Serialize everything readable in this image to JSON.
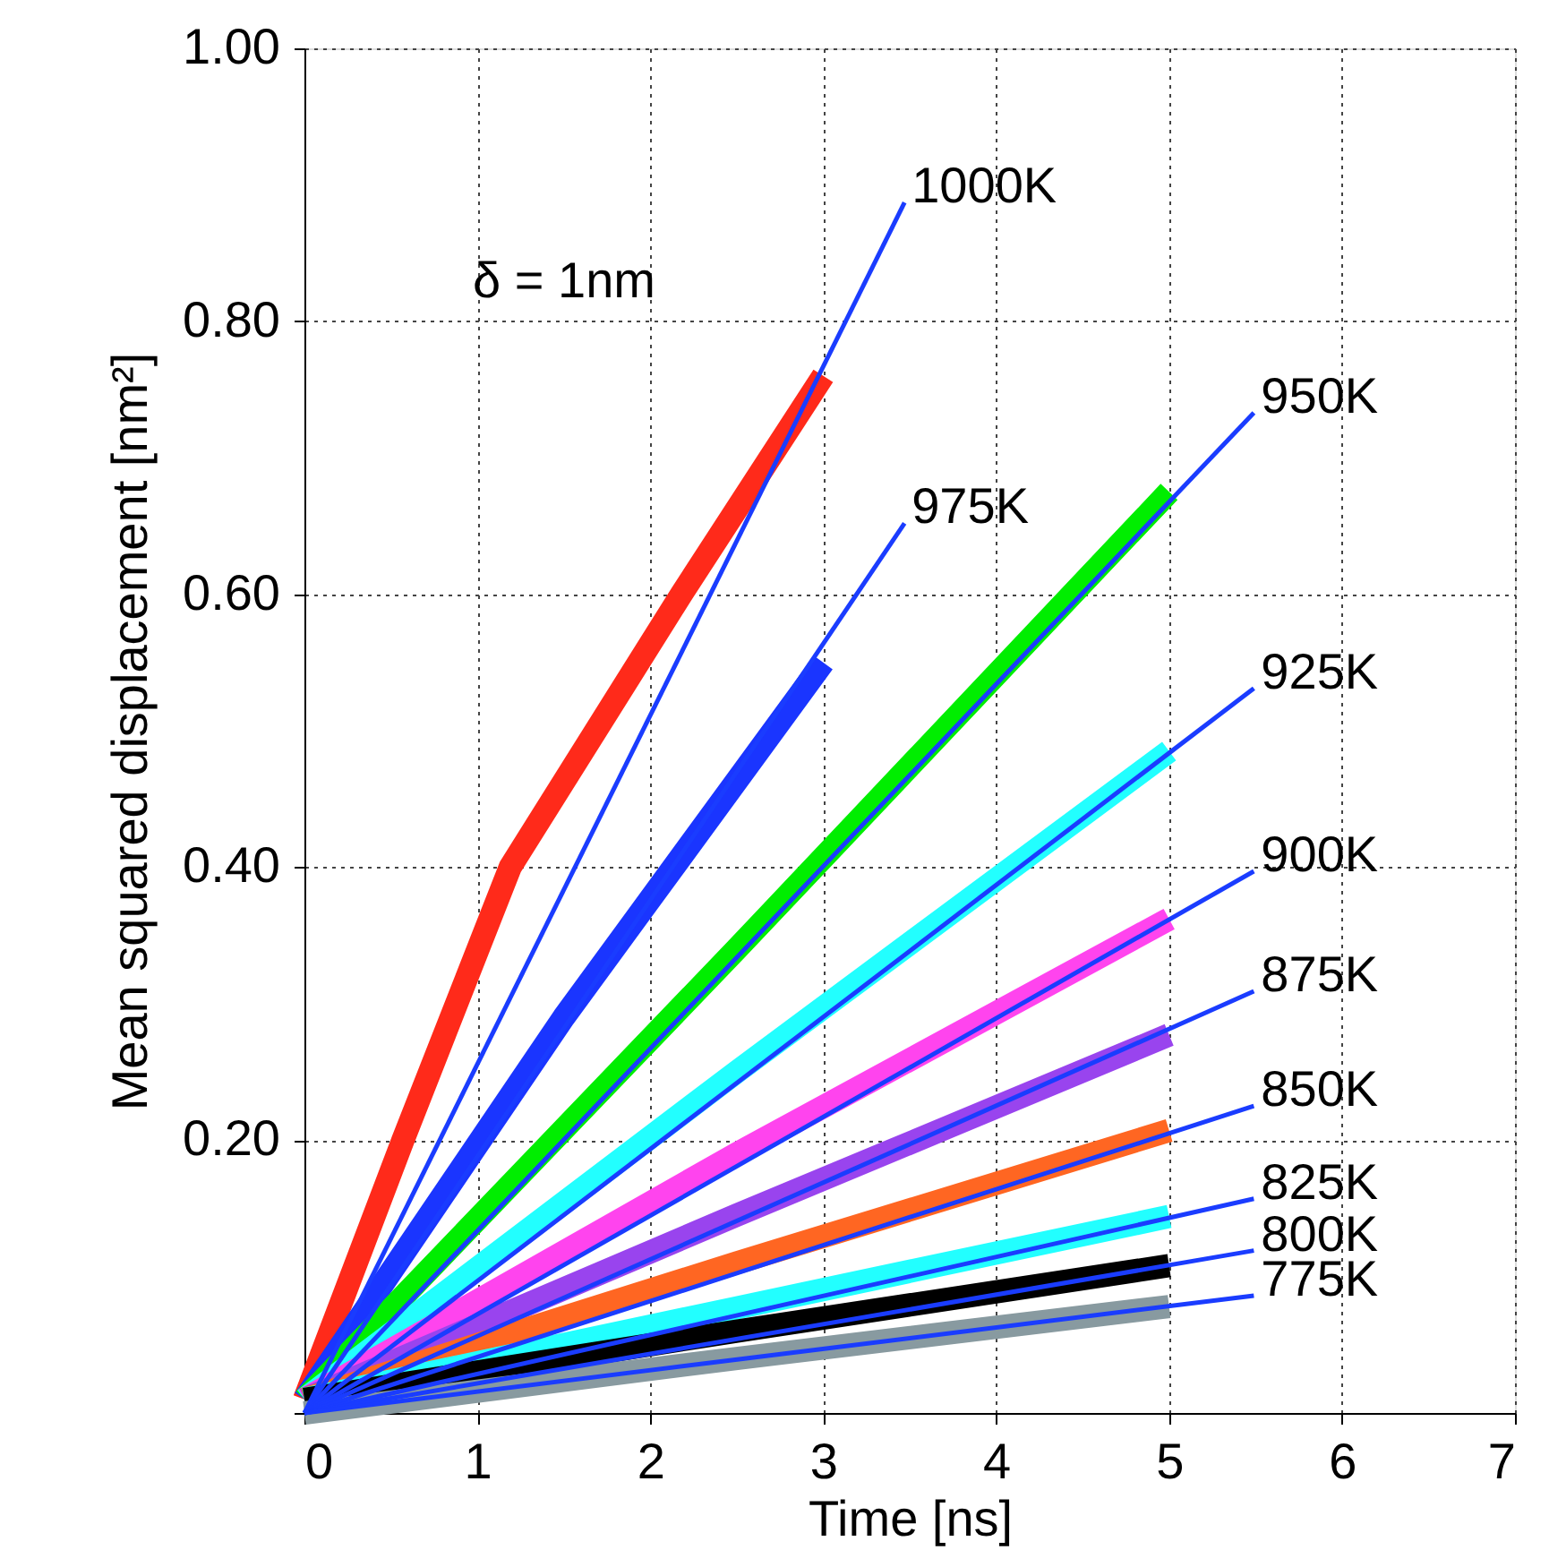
{
  "chart_data": {
    "type": "line",
    "xlabel": "Time [ns]",
    "ylabel": "Mean squared displacement [nm²]",
    "xlim": [
      0,
      7
    ],
    "xticks": [
      0,
      1,
      2,
      3,
      4,
      5,
      6,
      7
    ],
    "ylim": [
      0,
      1
    ],
    "yticks": [
      {
        "value": 0,
        "label": null
      },
      {
        "value": 0.2,
        "label": "0.20"
      },
      {
        "value": 0.4,
        "label": "0.40"
      },
      {
        "value": 0.6,
        "label": "0.60"
      },
      {
        "value": 0.8,
        "label": "0.80"
      },
      {
        "value": 1.0,
        "label": "1.00"
      }
    ],
    "grid": true,
    "marker": "none",
    "line_style": "solid",
    "series": [
      {
        "color": "#ff2a1a",
        "x": [
          0,
          0.57,
          1.19,
          2.18,
          3
        ],
        "values": [
          0.01,
          0.2,
          0.4,
          0.6,
          0.76
        ]
      },
      {
        "color": "#1a35ff",
        "x": [
          0,
          1.5,
          3
        ],
        "values": [
          0.01,
          0.29,
          0.55
        ]
      },
      {
        "color": "#00ee00",
        "x": [
          0,
          2.5,
          5
        ],
        "values": [
          0.01,
          0.34,
          0.675
        ]
      },
      {
        "color": "#22ffff",
        "x": [
          0,
          2.5,
          5
        ],
        "values": [
          0.01,
          0.25,
          0.485
        ]
      },
      {
        "color": "#ff44ee",
        "x": [
          0,
          2.5,
          5
        ],
        "values": [
          0.01,
          0.19,
          0.362
        ]
      },
      {
        "color": "#9944ee",
        "x": [
          0,
          2.5,
          5
        ],
        "values": [
          0.01,
          0.145,
          0.277
        ]
      },
      {
        "color": "#ff6622",
        "x": [
          0,
          2.5,
          5
        ],
        "values": [
          0.01,
          0.11,
          0.207
        ]
      },
      {
        "color": "#22ffff",
        "x": [
          0,
          2.5,
          5
        ],
        "values": [
          0.01,
          0.077,
          0.144
        ]
      },
      {
        "color": "#000000",
        "x": [
          0,
          2.5,
          5
        ],
        "values": [
          0.01,
          0.06,
          0.108
        ]
      },
      {
        "color": "#889aa0",
        "x": [
          0,
          2.5,
          5
        ],
        "values": [
          0.0,
          0.04,
          0.078
        ]
      },
      {
        "type": "line",
        "name": "1000K",
        "color": "#1a3cff",
        "x": [
          0,
          3.47
        ],
        "values": [
          0.0,
          0.887
        ]
      },
      {
        "type": "line",
        "name": "975K",
        "color": "#1a3cff",
        "x": [
          0,
          3.47
        ],
        "values": [
          0.0,
          0.652
        ]
      },
      {
        "type": "line",
        "name": "950K",
        "color": "#1a3cff",
        "x": [
          0,
          5.49
        ],
        "values": [
          0.0,
          0.733
        ]
      },
      {
        "type": "line",
        "name": "925K",
        "color": "#1a3cff",
        "x": [
          0,
          5.49
        ],
        "values": [
          0.0,
          0.531
        ]
      },
      {
        "type": "line",
        "name": "900K",
        "color": "#1a3cff",
        "x": [
          0,
          5.49
        ],
        "values": [
          0.0,
          0.397
        ]
      },
      {
        "type": "line",
        "name": "875K",
        "color": "#1a3cff",
        "x": [
          0,
          5.49
        ],
        "values": [
          0.0,
          0.309
        ]
      },
      {
        "type": "line",
        "name": "850K",
        "color": "#1a3cff",
        "x": [
          0,
          5.49
        ],
        "values": [
          0.0,
          0.225
        ]
      },
      {
        "type": "line",
        "name": "825K",
        "color": "#1a3cff",
        "x": [
          0,
          5.49
        ],
        "values": [
          0.0,
          0.157
        ]
      },
      {
        "type": "line",
        "name": "800K",
        "color": "#1a3cff",
        "x": [
          0,
          5.49
        ],
        "values": [
          0.0,
          0.119
        ]
      },
      {
        "type": "line",
        "name": "775K",
        "color": "#1a3cff",
        "x": [
          0,
          5.49
        ],
        "values": [
          0.0,
          0.086
        ]
      }
    ],
    "annotations": [
      "δ = 1nm"
    ]
  }
}
